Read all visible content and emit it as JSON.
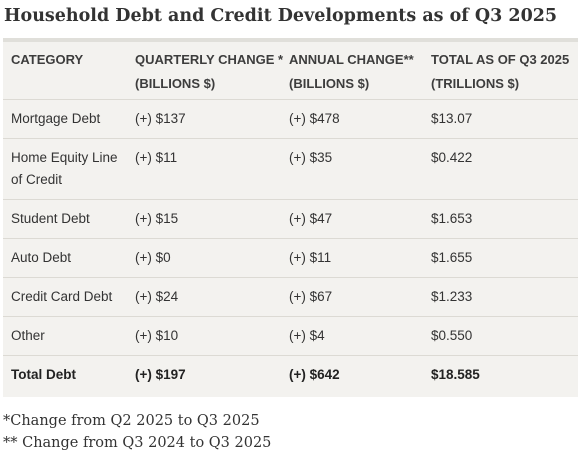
{
  "title": "Household Debt and Credit Developments as of Q3 2025",
  "columns": [
    {
      "line1": "CATEGORY",
      "line2": ""
    },
    {
      "line1": "QUARTERLY CHANGE *",
      "line2": "(BILLIONS $)"
    },
    {
      "line1": "ANNUAL CHANGE**",
      "line2": "(BILLIONS $)"
    },
    {
      "line1": "TOTAL AS OF Q3 2025",
      "line2": "(TRILLIONS $)"
    }
  ],
  "rows": [
    {
      "category": "Mortgage Debt",
      "category_line2": "",
      "quarterly": "(+) $137",
      "annual": "(+) $478",
      "total": "$13.07"
    },
    {
      "category": "Home Equity Line",
      "category_line2": "of Credit",
      "quarterly": "(+) $11",
      "annual": "(+) $35",
      "total": "$0.422"
    },
    {
      "category": "Student Debt",
      "category_line2": "",
      "quarterly": "(+) $15",
      "annual": "(+) $47",
      "total": "$1.653"
    },
    {
      "category": "Auto Debt",
      "category_line2": "",
      "quarterly": "(+) $0",
      "annual": "(+) $11",
      "total": "$1.655"
    },
    {
      "category": "Credit Card Debt",
      "category_line2": "",
      "quarterly": "(+) $24",
      "annual": "(+) $67",
      "total": "$1.233"
    },
    {
      "category": "Other",
      "category_line2": "",
      "quarterly": "(+) $10",
      "annual": "(+) $4",
      "total": "$0.550"
    }
  ],
  "total_row": {
    "category": "Total Debt",
    "quarterly": "(+) $197",
    "annual": "(+) $642",
    "total": "$18.585"
  },
  "footnotes": [
    "*Change from Q2 2025 to Q3 2025",
    "** Change from Q3 2024 to Q3 2025"
  ]
}
